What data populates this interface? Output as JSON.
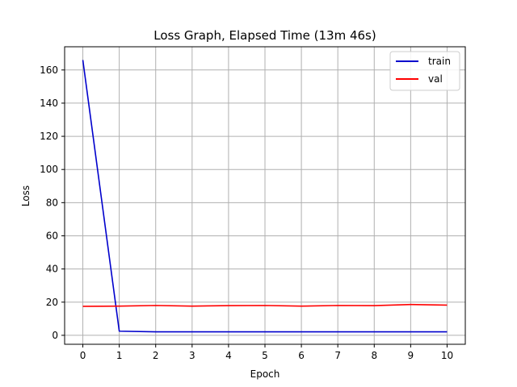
{
  "chart_data": {
    "type": "line",
    "title": "Loss Graph, Elapsed Time (13m 46s)",
    "xlabel": "Epoch",
    "ylabel": "Loss",
    "x": [
      0,
      1,
      2,
      3,
      4,
      5,
      6,
      7,
      8,
      9,
      10
    ],
    "xticks": [
      "0",
      "1",
      "2",
      "3",
      "4",
      "5",
      "6",
      "7",
      "8",
      "9",
      "10"
    ],
    "yticks": [
      "0",
      "20",
      "40",
      "60",
      "80",
      "100",
      "120",
      "140",
      "160"
    ],
    "xlim": [
      -0.5,
      10.5
    ],
    "ylim": [
      -5.4,
      174
    ],
    "grid": true,
    "legend_position": "top-right",
    "series": [
      {
        "name": "train",
        "color": "#0000cc",
        "values": [
          166,
          2.5,
          2.1,
          2.1,
          2.1,
          2.1,
          2.1,
          2.1,
          2.1,
          2.1,
          2.1
        ]
      },
      {
        "name": "val",
        "color": "#ff0000",
        "values": [
          17.5,
          17.6,
          18.0,
          17.6,
          17.9,
          18.0,
          17.6,
          18.0,
          17.9,
          18.6,
          18.2
        ]
      }
    ]
  }
}
